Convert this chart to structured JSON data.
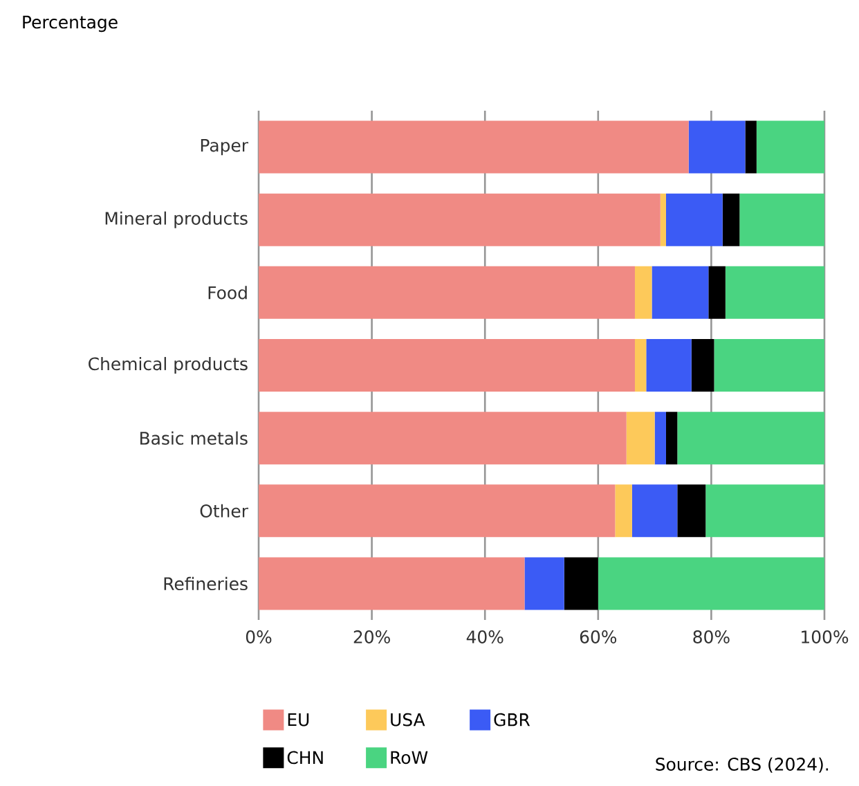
{
  "chart_data": {
    "type": "bar",
    "orientation": "horizontal",
    "stacked": true,
    "xlabel": "Percentage",
    "categories": [
      "Paper",
      "Mineral products",
      "Food",
      "Chemical products",
      "Basic metals",
      "Other",
      "Refineries"
    ],
    "series": [
      {
        "name": "EU",
        "color": "#f08a84",
        "values": [
          76,
          71,
          66.5,
          66.5,
          65,
          63,
          47
        ]
      },
      {
        "name": "USA",
        "color": "#fdc95a",
        "values": [
          0,
          1,
          3,
          2,
          5,
          3,
          0
        ]
      },
      {
        "name": "GBR",
        "color": "#3b5bf5",
        "values": [
          10,
          10,
          10,
          8,
          2,
          8,
          7
        ]
      },
      {
        "name": "CHN",
        "color": "#000000",
        "values": [
          2,
          3,
          3,
          4,
          2,
          5,
          6
        ]
      },
      {
        "name": "RoW",
        "color": "#4ad481",
        "values": [
          12,
          15,
          17.5,
          19.5,
          26,
          21,
          40
        ]
      }
    ],
    "xlim": [
      0,
      100
    ],
    "xticks": [
      {
        "value": 0,
        "label": "0%"
      },
      {
        "value": 20,
        "label": "20%"
      },
      {
        "value": 40,
        "label": "40%"
      },
      {
        "value": 60,
        "label": "60%"
      },
      {
        "value": 80,
        "label": "80%"
      },
      {
        "value": 100,
        "label": "100%"
      }
    ],
    "grid": "x",
    "legend": "bottom",
    "annotations": [
      "Source: CBS (2024)."
    ]
  }
}
